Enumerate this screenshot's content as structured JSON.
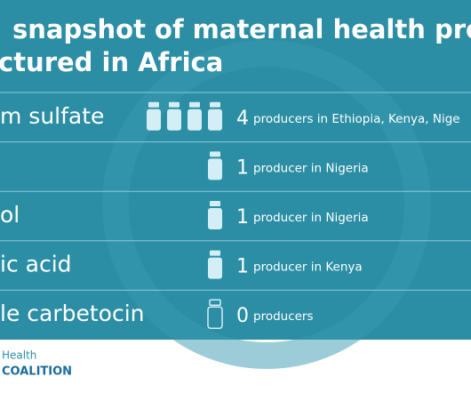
{
  "title": {
    "lines": [
      "snapshot of maternal health pro",
      "ctured in Africa"
    ]
  },
  "rows": [
    {
      "label": "m sulfate",
      "count": 4,
      "text": "producers in Ethiopia, Kenya, Nige"
    },
    {
      "count": 1,
      "text": "producer in Nigeria"
    },
    {
      "label": "ol",
      "count": 1,
      "text": "producer in Nigeria"
    },
    {
      "label": "ic acid",
      "count": 1,
      "text": "producer in Kenya"
    },
    {
      "label": "le carbetocin",
      "count": 0,
      "text": "producers"
    }
  ],
  "footer": {
    "line1": "Health",
    "line2": "COALITION"
  }
}
